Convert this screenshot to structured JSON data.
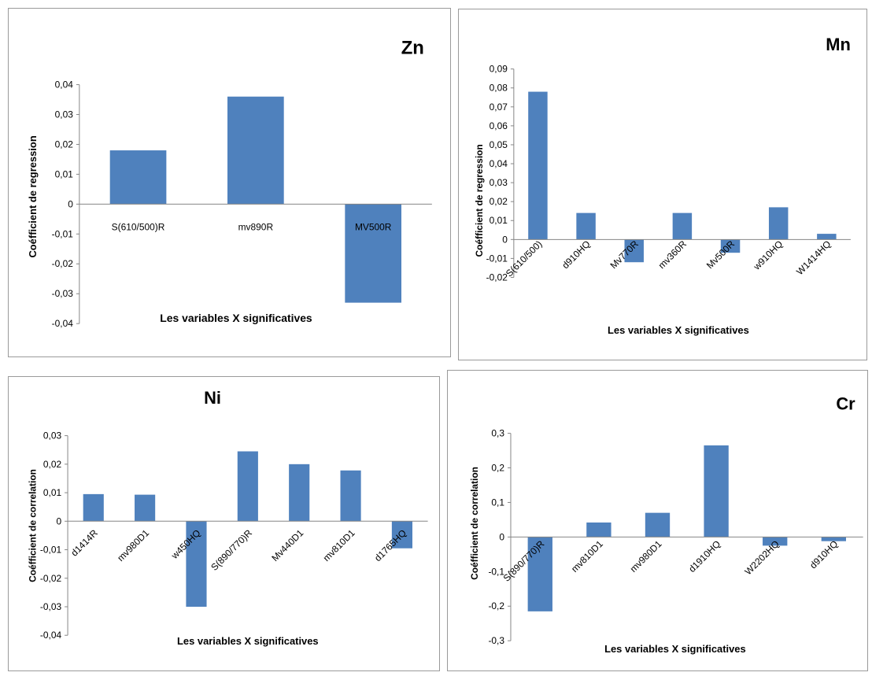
{
  "colors": {
    "bar": "#4f81bd",
    "axis": "#868686",
    "text": "#000000"
  },
  "chart_data": [
    {
      "type": "bar",
      "title": "Zn",
      "xlabel": "Les variables X significatives",
      "ylabel": "Coéfficient de regression",
      "categories": [
        "S(610/500)R",
        "mv890R",
        "MV500R"
      ],
      "values": [
        0.018,
        0.036,
        -0.033
      ],
      "ylim": [
        -0.04,
        0.04
      ],
      "yticks": [
        "-0,04",
        "-0,03",
        "-0,02",
        "-0,01",
        "0",
        "0,01",
        "0,02",
        "0,03",
        "0,04"
      ],
      "grid": false,
      "legend": "none"
    },
    {
      "type": "bar",
      "title": "Mn",
      "xlabel": "Les variables X significatives",
      "ylabel": "Coéfficient de regression",
      "categories": [
        "S(610/500)",
        "d910HQ",
        "Mv770R",
        "mv360R",
        "Mv500R",
        "w910HQ",
        "W1414HQ"
      ],
      "values": [
        0.078,
        0.014,
        -0.012,
        0.014,
        -0.007,
        0.017,
        0.003
      ],
      "ylim": [
        -0.02,
        0.09
      ],
      "yticks": [
        "-0,02",
        "-0,01",
        "0",
        "0,01",
        "0,02",
        "0,03",
        "0,04",
        "0,05",
        "0,06",
        "0,07",
        "0,08",
        "0,09"
      ],
      "grid": false,
      "legend": "none"
    },
    {
      "type": "bar",
      "title": "Ni",
      "xlabel": "Les variables X significatives",
      "ylabel": "Coéfficient de correlation",
      "categories": [
        "d1414R",
        "mv980D1",
        "w450HQ",
        "S(890/770)R",
        "Mv440D1",
        "mv810D1",
        "d1765HQ"
      ],
      "values": [
        0.0095,
        0.0093,
        -0.03,
        0.0245,
        0.02,
        0.0178,
        -0.0095
      ],
      "ylim": [
        -0.04,
        0.03
      ],
      "yticks": [
        "-0,04",
        "-0,03",
        "-0,02",
        "-0,01",
        "0",
        "0,01",
        "0,02",
        "0,03"
      ],
      "grid": false,
      "legend": "none"
    },
    {
      "type": "bar",
      "title": "Cr",
      "xlabel": "Les variables X significatives",
      "ylabel": "Coéfficient de correlation",
      "categories": [
        "S(890/770)R",
        "mv810D1",
        "mv980D1",
        "d1910HQ",
        "W2202HQ",
        "d910HQ"
      ],
      "values": [
        -0.215,
        0.042,
        0.07,
        0.265,
        -0.025,
        -0.012
      ],
      "ylim": [
        -0.3,
        0.3
      ],
      "yticks": [
        "-0,3",
        "-0,2",
        "-0,1",
        "0",
        "0,1",
        "0,2",
        "0,3"
      ],
      "grid": false,
      "legend": "none"
    }
  ]
}
